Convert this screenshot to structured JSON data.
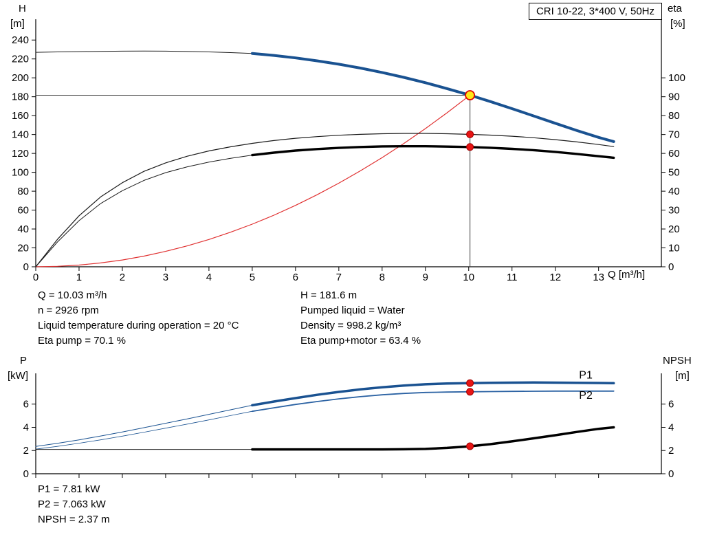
{
  "title_box": {
    "label": "CRI 10-22, 3*400 V, 50Hz"
  },
  "axes_labels": {
    "h": "H",
    "h_unit": "[m]",
    "eta": "eta",
    "eta_unit": "[%]",
    "q": "Q [m³/h]",
    "p": "P",
    "p_unit": "[kW]",
    "npsh": "NPSH",
    "npsh_unit": "[m]"
  },
  "info": {
    "left": [
      "Q = 10.03 m³/h",
      "n = 2926 rpm",
      "Liquid temperature during operation = 20 °C",
      "Eta pump = 70.1 %"
    ],
    "right": [
      "H = 181.6 m",
      "Pumped liquid = Water",
      "Density = 998.2 kg/m³",
      "Eta pump+motor = 63.4 %"
    ]
  },
  "results": [
    "P1 = 7.81 kW",
    "P2 = 7.063 kW",
    "NPSH = 2.37 m"
  ],
  "chart_data": [
    {
      "type": "line",
      "title": "CRI 10-22, 3*400 V, 50Hz",
      "x_axis": {
        "label": "Q [m³/h]",
        "min": 0,
        "max": 14.45,
        "ticks": [
          0,
          1,
          2,
          3,
          4,
          5,
          6,
          7,
          8,
          9,
          10,
          11,
          12,
          13
        ],
        "show_labels": true
      },
      "y_left": {
        "label": "H [m]",
        "min": 0,
        "max": 262,
        "ticks": [
          0,
          20,
          40,
          60,
          80,
          100,
          120,
          140,
          160,
          180,
          200,
          220,
          240
        ]
      },
      "y_right": {
        "label": "eta [%]",
        "min": 0,
        "max": 131,
        "ticks": [
          0,
          10,
          20,
          30,
          40,
          50,
          60,
          70,
          80,
          90,
          100
        ]
      },
      "duty_point": {
        "q": 10.03,
        "h": 181.6
      },
      "crosshair": {
        "x": 10.03,
        "y": 181.6
      },
      "series": [
        {
          "name": "head-curve-thin",
          "axis": "left",
          "color": "#1a1a1a",
          "width": 1,
          "points": [
            [
              0,
              227.0
            ],
            [
              0.5,
              227.4
            ],
            [
              1,
              227.7
            ],
            [
              1.5,
              228.0
            ],
            [
              2,
              228.2
            ],
            [
              2.5,
              228.3
            ],
            [
              3,
              228.2
            ],
            [
              3.5,
              227.9
            ],
            [
              4,
              227.4
            ],
            [
              4.5,
              226.7
            ],
            [
              5,
              225.8
            ]
          ]
        },
        {
          "name": "system-curve",
          "axis": "left",
          "color": "#e03131",
          "width": 1.2,
          "points": [
            [
              0,
              0
            ],
            [
              0.5,
              0.5
            ],
            [
              1,
              1.8
            ],
            [
              1.5,
              4.1
            ],
            [
              2,
              7.2
            ],
            [
              2.5,
              11.3
            ],
            [
              3,
              16.3
            ],
            [
              3.5,
              22.1
            ],
            [
              4,
              28.9
            ],
            [
              4.5,
              36.6
            ],
            [
              5,
              45.1
            ],
            [
              5.5,
              54.6
            ],
            [
              6,
              65.0
            ],
            [
              6.5,
              76.3
            ],
            [
              7,
              88.5
            ],
            [
              7.5,
              101.6
            ],
            [
              8,
              115.6
            ],
            [
              8.5,
              130.5
            ],
            [
              9,
              146.3
            ],
            [
              9.5,
              163.0
            ],
            [
              10,
              180.6
            ],
            [
              10.03,
              181.6
            ]
          ]
        },
        {
          "name": "eta-pump-curve",
          "axis": "right",
          "color": "#1a1a1a",
          "width": 1.2,
          "points": [
            [
              0,
              0
            ],
            [
              0.5,
              14.5
            ],
            [
              1,
              27.0
            ],
            [
              1.5,
              37.0
            ],
            [
              2,
              44.5
            ],
            [
              2.5,
              50.5
            ],
            [
              3,
              55.0
            ],
            [
              3.5,
              58.5
            ],
            [
              4,
              61.3
            ],
            [
              4.5,
              63.5
            ],
            [
              5,
              65.3
            ],
            [
              5.5,
              66.8
            ],
            [
              6,
              68.0
            ],
            [
              6.5,
              68.9
            ],
            [
              7,
              69.6
            ],
            [
              7.5,
              70.1
            ],
            [
              8,
              70.4
            ],
            [
              8.5,
              70.6
            ],
            [
              9,
              70.6
            ],
            [
              9.5,
              70.4
            ],
            [
              10,
              70.1
            ],
            [
              10.5,
              69.7
            ],
            [
              11,
              69.1
            ],
            [
              11.5,
              68.3
            ],
            [
              12,
              67.3
            ],
            [
              12.5,
              66.1
            ],
            [
              13,
              64.7
            ],
            [
              13.35,
              63.6
            ]
          ]
        },
        {
          "name": "eta-pump-motor-thin",
          "axis": "right",
          "color": "#1a1a1a",
          "width": 1,
          "points": [
            [
              0,
              0
            ],
            [
              0.5,
              13.1
            ],
            [
              1,
              24.4
            ],
            [
              1.5,
              33.5
            ],
            [
              2,
              40.3
            ],
            [
              2.5,
              45.7
            ],
            [
              3,
              49.8
            ],
            [
              3.5,
              52.9
            ],
            [
              4,
              55.4
            ],
            [
              4.5,
              57.4
            ],
            [
              5,
              59.1
            ]
          ]
        },
        {
          "name": "eta-pump-motor-curve",
          "axis": "right",
          "color": "#000000",
          "width": 3.4,
          "points": [
            [
              5,
              59.1
            ],
            [
              5.5,
              60.4
            ],
            [
              6,
              61.5
            ],
            [
              6.5,
              62.3
            ],
            [
              7,
              62.9
            ],
            [
              7.5,
              63.4
            ],
            [
              8,
              63.7
            ],
            [
              8.5,
              63.8
            ],
            [
              9,
              63.8
            ],
            [
              9.5,
              63.6
            ],
            [
              10,
              63.4
            ],
            [
              10.5,
              63.0
            ],
            [
              11,
              62.4
            ],
            [
              11.5,
              61.7
            ],
            [
              12,
              60.8
            ],
            [
              12.5,
              59.7
            ],
            [
              13,
              58.5
            ],
            [
              13.35,
              57.7
            ]
          ]
        },
        {
          "name": "head-curve",
          "axis": "left",
          "color": "#1a5291",
          "width": 4,
          "points": [
            [
              5,
              225.8
            ],
            [
              5.5,
              223.7
            ],
            [
              6,
              221.1
            ],
            [
              6.5,
              218.0
            ],
            [
              7,
              214.4
            ],
            [
              7.5,
              210.3
            ],
            [
              8,
              205.7
            ],
            [
              8.5,
              200.5
            ],
            [
              9,
              194.8
            ],
            [
              9.5,
              188.6
            ],
            [
              10,
              182.0
            ],
            [
              10.5,
              174.9
            ],
            [
              11,
              167.4
            ],
            [
              11.5,
              159.7
            ],
            [
              12,
              151.9
            ],
            [
              12.5,
              144.2
            ],
            [
              13,
              137.0
            ],
            [
              13.35,
              132.5
            ]
          ]
        }
      ],
      "markers": [
        {
          "name": "eta-pump-point",
          "x": 10.03,
          "y": 70.1,
          "axis": "right",
          "r": 5,
          "fill": "#e81515",
          "stroke": "#a00000",
          "stroke_width": 1
        },
        {
          "name": "eta-pump-motor-point",
          "x": 10.03,
          "y": 63.4,
          "axis": "right",
          "r": 5,
          "fill": "#e81515",
          "stroke": "#a00000",
          "stroke_width": 1
        },
        {
          "name": "duty-point",
          "x": 10.03,
          "y": 181.6,
          "axis": "left",
          "r": 6.5,
          "fill": "#ffe81a",
          "stroke": "#e00000",
          "stroke_width": 1.8
        }
      ]
    },
    {
      "type": "line",
      "x_axis": {
        "label": "",
        "min": 0,
        "max": 14.45,
        "ticks": [
          0,
          1,
          2,
          3,
          4,
          5,
          6,
          7,
          8,
          9,
          10,
          11,
          12,
          13
        ],
        "show_labels": false
      },
      "y_left": {
        "label": "P [kW]",
        "min": 0,
        "max": 8.65,
        "ticks": [
          0,
          2,
          4,
          6
        ]
      },
      "y_right": {
        "label": "NPSH [m]",
        "min": 0,
        "max": 8.65,
        "ticks": [
          0,
          2,
          4,
          6
        ]
      },
      "series": [
        {
          "name": "p1-curve-thin",
          "axis": "left",
          "color": "#1a5291",
          "width": 1,
          "points": [
            [
              0,
              2.35
            ],
            [
              0.5,
              2.62
            ],
            [
              1,
              2.92
            ],
            [
              1.5,
              3.25
            ],
            [
              2,
              3.6
            ],
            [
              2.5,
              3.97
            ],
            [
              3,
              4.35
            ],
            [
              3.5,
              4.73
            ],
            [
              4,
              5.12
            ],
            [
              4.5,
              5.51
            ],
            [
              5,
              5.9
            ]
          ]
        },
        {
          "name": "p2-curve-thin",
          "axis": "left",
          "color": "#1a5291",
          "width": 0.8,
          "points": [
            [
              0,
              2.12
            ],
            [
              0.5,
              2.36
            ],
            [
              1,
              2.63
            ],
            [
              1.5,
              2.92
            ],
            [
              2,
              3.24
            ],
            [
              2.5,
              3.58
            ],
            [
              3,
              3.93
            ],
            [
              3.5,
              4.28
            ],
            [
              4,
              4.64
            ],
            [
              4.5,
              5.01
            ],
            [
              5,
              5.38
            ]
          ]
        },
        {
          "name": "npsh-curve-thin",
          "axis": "right",
          "color": "#1a1a1a",
          "width": 1,
          "points": [
            [
              0,
              2.1
            ],
            [
              1,
              2.1
            ],
            [
              2,
              2.1
            ],
            [
              3,
              2.1
            ],
            [
              4,
              2.1
            ],
            [
              5,
              2.1
            ]
          ]
        },
        {
          "name": "p1-curve",
          "axis": "left",
          "color": "#1a5291",
          "width": 3.5,
          "points": [
            [
              5,
              5.9
            ],
            [
              5.5,
              6.22
            ],
            [
              6,
              6.52
            ],
            [
              6.5,
              6.8
            ],
            [
              7,
              7.05
            ],
            [
              7.5,
              7.27
            ],
            [
              8,
              7.45
            ],
            [
              8.5,
              7.6
            ],
            [
              9,
              7.71
            ],
            [
              9.5,
              7.78
            ],
            [
              10,
              7.81
            ],
            [
              10.5,
              7.84
            ],
            [
              11,
              7.85
            ],
            [
              11.5,
              7.86
            ],
            [
              12,
              7.85
            ],
            [
              12.5,
              7.84
            ],
            [
              13,
              7.82
            ],
            [
              13.35,
              7.8
            ]
          ]
        },
        {
          "name": "p2-curve",
          "axis": "left",
          "color": "#2b62a3",
          "width": 1.8,
          "points": [
            [
              5,
              5.38
            ],
            [
              5.5,
              5.68
            ],
            [
              6,
              5.97
            ],
            [
              6.5,
              6.22
            ],
            [
              7,
              6.45
            ],
            [
              7.5,
              6.64
            ],
            [
              8,
              6.8
            ],
            [
              8.5,
              6.92
            ],
            [
              9,
              7.0
            ],
            [
              9.5,
              7.04
            ],
            [
              10,
              7.06
            ],
            [
              10.5,
              7.08
            ],
            [
              11,
              7.1
            ],
            [
              11.5,
              7.11
            ],
            [
              12,
              7.12
            ],
            [
              12.5,
              7.12
            ],
            [
              13,
              7.12
            ],
            [
              13.35,
              7.12
            ]
          ]
        },
        {
          "name": "npsh-curve",
          "axis": "right",
          "color": "#000000",
          "width": 3.5,
          "points": [
            [
              5,
              2.1
            ],
            [
              6,
              2.1
            ],
            [
              7,
              2.1
            ],
            [
              8,
              2.1
            ],
            [
              8.5,
              2.11
            ],
            [
              9,
              2.14
            ],
            [
              9.5,
              2.23
            ],
            [
              10,
              2.36
            ],
            [
              10.5,
              2.55
            ],
            [
              11,
              2.79
            ],
            [
              11.5,
              3.05
            ],
            [
              12,
              3.32
            ],
            [
              12.5,
              3.6
            ],
            [
              13,
              3.87
            ],
            [
              13.35,
              4.0
            ]
          ]
        }
      ],
      "markers": [
        {
          "name": "p1-point",
          "x": 10.03,
          "y": 7.81,
          "axis": "left",
          "r": 5,
          "fill": "#e81515",
          "stroke": "#a00000",
          "stroke_width": 1
        },
        {
          "name": "p2-point",
          "x": 10.03,
          "y": 7.063,
          "axis": "left",
          "r": 5,
          "fill": "#e81515",
          "stroke": "#a00000",
          "stroke_width": 1
        },
        {
          "name": "npsh-point",
          "x": 10.03,
          "y": 2.37,
          "axis": "right",
          "r": 5,
          "fill": "#e81515",
          "stroke": "#a00000",
          "stroke_width": 1
        }
      ],
      "series_labels": [
        {
          "text": "P1",
          "x": 12.55,
          "y": 8.2,
          "color": "#1a5291"
        },
        {
          "text": "P2",
          "x": 12.55,
          "y": 6.45,
          "color": "#1a5291"
        }
      ]
    }
  ]
}
